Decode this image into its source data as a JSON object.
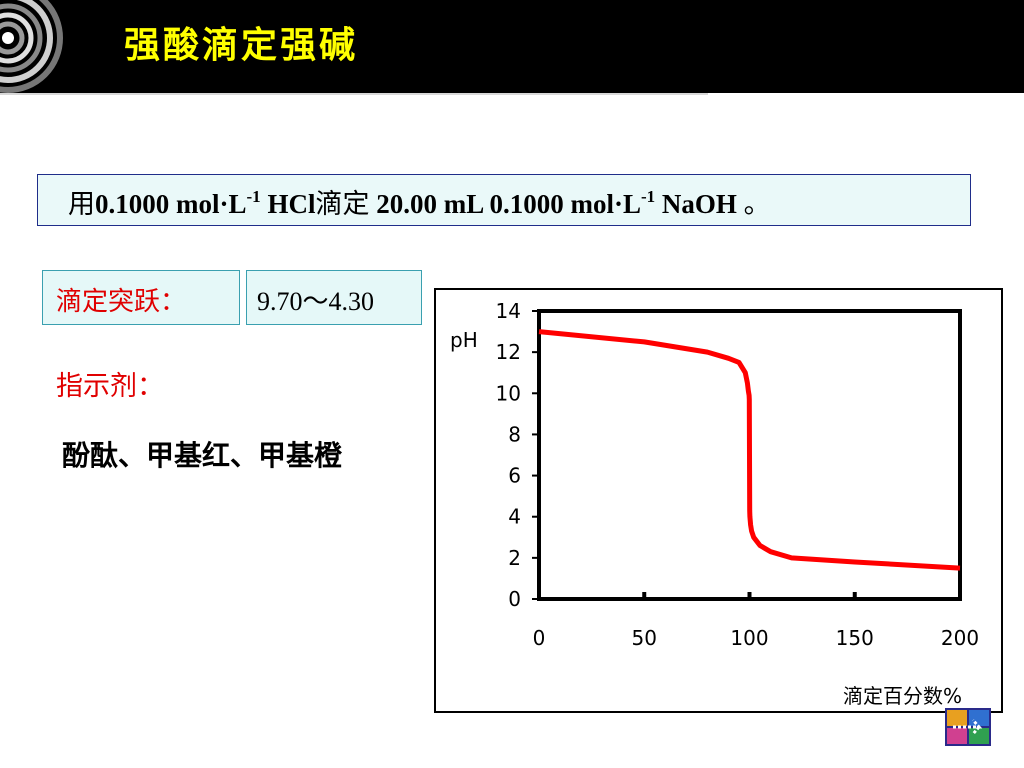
{
  "header": {
    "title": "强酸滴定强碱",
    "logo_icon": "concentric-circles-logo"
  },
  "problem": {
    "prefix": "用",
    "conc1": "0.1000 mol·L",
    "exp1": "-1",
    "acid": " HCl",
    "verb": "滴定",
    "volume": " 20.00 mL 0.1000 mol·L",
    "exp2": "-1",
    "base": " NaOH ",
    "end": "。"
  },
  "jump": {
    "label": "滴定突跃：",
    "value": "9.70～4.30"
  },
  "indicator": {
    "label": "指示剂：",
    "list": "酚酞、甲基红、甲基橙"
  },
  "colors": {
    "curve": "#ff0000",
    "label_red": "#e00000",
    "title_yellow": "#ffff00"
  },
  "chart_data": {
    "type": "line",
    "title": "",
    "xlabel": "滴定百分数%",
    "ylabel": "pH",
    "xlim": [
      0,
      200
    ],
    "ylim": [
      0,
      14
    ],
    "x_ticks": [
      "0",
      "50",
      "100",
      "150",
      "200"
    ],
    "y_ticks": [
      "0",
      "2",
      "4",
      "6",
      "8",
      "10",
      "12",
      "14"
    ],
    "grid": false,
    "series": [
      {
        "x": [
          0,
          50,
          80,
          90,
          95,
          98,
          99,
          99.5,
          99.8,
          99.9,
          100,
          100.1,
          100.2,
          100.5,
          101,
          102,
          105,
          110,
          120,
          150,
          200
        ],
        "y": [
          13.0,
          12.5,
          12.0,
          11.7,
          11.5,
          11.0,
          10.5,
          10.1,
          9.9,
          9.7,
          7.0,
          4.3,
          4.0,
          3.6,
          3.3,
          3.0,
          2.6,
          2.3,
          2.0,
          1.8,
          1.5
        ]
      }
    ]
  },
  "corner_icon": "next-arrow-icon"
}
